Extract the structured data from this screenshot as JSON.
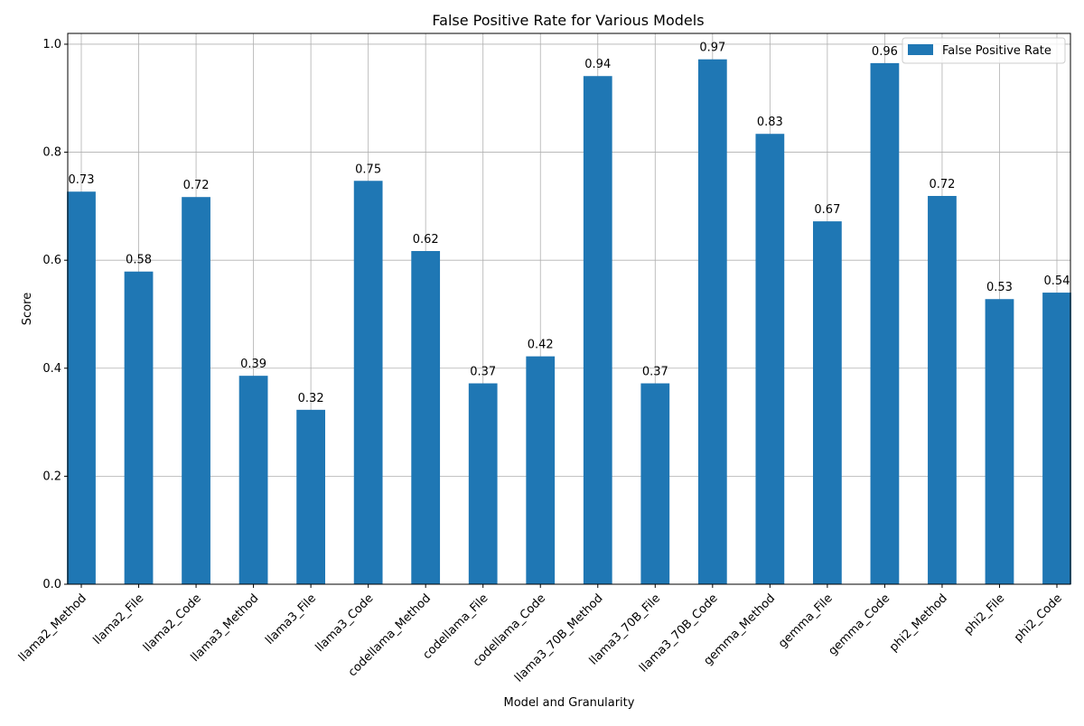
{
  "chart_data": {
    "type": "bar",
    "title": "False Positive Rate for Various Models",
    "xlabel": "Model and Granularity",
    "ylabel": "Score",
    "ylim": [
      0,
      1.02
    ],
    "yticks": [
      "0.0",
      "0.2",
      "0.4",
      "0.6",
      "0.8",
      "1.0"
    ],
    "grid": true,
    "legend_position": "top-right",
    "categories": [
      "llama2_Method",
      "llama2_File",
      "llama2_Code",
      "llama3_Method",
      "llama3_File",
      "llama3_Code",
      "codellama_Method",
      "codellama_File",
      "codellama_Code",
      "llama3_70B_Method",
      "llama3_70B_File",
      "llama3_70B_Code",
      "gemma_Method",
      "gemma_File",
      "gemma_Code",
      "phi2_Method",
      "phi2_File",
      "phi2_Code"
    ],
    "series": [
      {
        "name": "False Positive Rate",
        "color": "#1f77b4",
        "values": [
          0.727,
          0.579,
          0.717,
          0.386,
          0.323,
          0.747,
          0.617,
          0.372,
          0.422,
          0.941,
          0.372,
          0.972,
          0.834,
          0.672,
          0.965,
          0.719,
          0.528,
          0.54
        ],
        "labels": [
          "0.73",
          "0.58",
          "0.72",
          "0.39",
          "0.32",
          "0.75",
          "0.62",
          "0.37",
          "0.42",
          "0.94",
          "0.37",
          "0.97",
          "0.83",
          "0.67",
          "0.96",
          "0.72",
          "0.53",
          "0.54"
        ]
      }
    ]
  }
}
